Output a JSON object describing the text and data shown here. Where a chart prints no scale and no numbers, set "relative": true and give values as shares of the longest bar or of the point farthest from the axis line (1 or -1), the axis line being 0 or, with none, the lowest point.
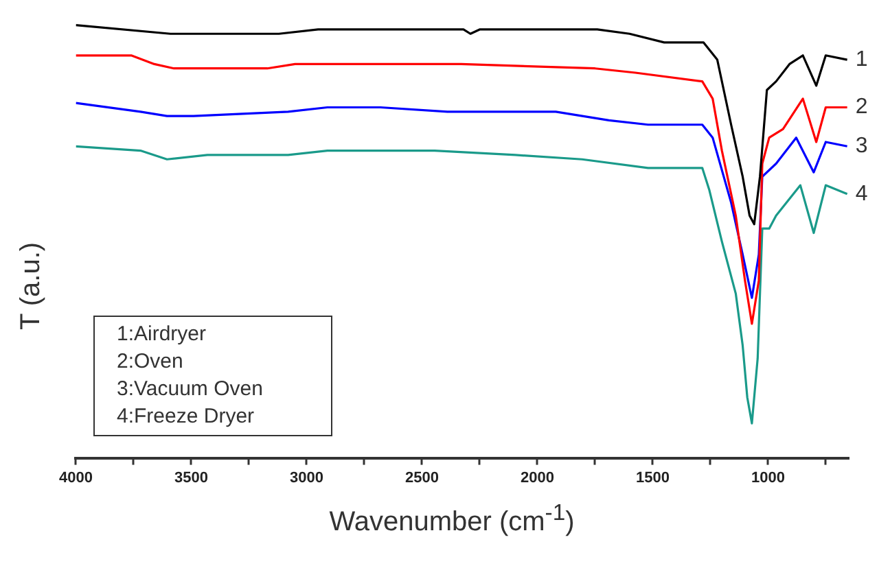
{
  "chart_data": {
    "type": "line",
    "relative": true,
    "xlabel": "Wavenumber (cm$^{-1}$)",
    "ylabel": "T (a.u.)",
    "xlim": [
      4000,
      650
    ],
    "xticks": [
      4000,
      {
        "value": 3750,
        "label": null
      },
      3500,
      {
        "value": 3250,
        "label": null
      },
      3000,
      {
        "value": 2750,
        "label": null
      },
      2500,
      {
        "value": 2250,
        "label": null
      },
      2000,
      {
        "value": 1750,
        "label": null
      },
      1500,
      {
        "value": 1250,
        "label": null
      },
      1000,
      {
        "value": 750,
        "label": null
      }
    ],
    "legend": false,
    "grid": false,
    "marker": "none",
    "line_style": "solid",
    "annotations": [
      "1:Airdryer",
      "2:Oven",
      "3:Vacuum Oven",
      "4:Freeze Dryer"
    ],
    "series": [
      {
        "name": "1",
        "color": "#000000",
        "x": [
          4000,
          3590,
          3120,
          2950,
          2320,
          2290,
          2250,
          1740,
          1600,
          1450,
          1280,
          1220,
          1160,
          1110,
          1080,
          1060,
          1035,
          1005,
          965,
          907,
          849,
          791,
          750,
          657
        ],
        "values": [
          1,
          0.98,
          0.98,
          0.99,
          0.99,
          0.98,
          0.99,
          0.99,
          0.98,
          0.96,
          0.96,
          0.92,
          0.77,
          0.65,
          0.56,
          0.54,
          0.65,
          0.85,
          0.87,
          0.91,
          0.93,
          0.86,
          0.93,
          0.92
        ]
      },
      {
        "name": "2",
        "color": "#ff0000",
        "x": [
          4000,
          3760,
          3660,
          3575,
          3430,
          3170,
          3050,
          2850,
          2330,
          1750,
          1575,
          1285,
          1240,
          1200,
          1140,
          1100,
          1070,
          1040,
          1025,
          995,
          935,
          849,
          791,
          750,
          657
        ],
        "values": [
          0.93,
          0.93,
          0.91,
          0.9,
          0.9,
          0.9,
          0.91,
          0.91,
          0.91,
          0.9,
          0.89,
          0.87,
          0.83,
          0.71,
          0.56,
          0.41,
          0.31,
          0.41,
          0.68,
          0.74,
          0.76,
          0.83,
          0.73,
          0.81,
          0.81
        ]
      },
      {
        "name": "3",
        "color": "#0000ff",
        "x": [
          4000,
          3720,
          3605,
          3490,
          3080,
          2910,
          2680,
          2390,
          2330,
          1920,
          1690,
          1520,
          1285,
          1240,
          1160,
          1110,
          1070,
          1040,
          1025,
          965,
          878,
          802,
          750,
          657
        ],
        "values": [
          0.82,
          0.8,
          0.79,
          0.79,
          0.8,
          0.81,
          0.81,
          0.8,
          0.8,
          0.8,
          0.78,
          0.77,
          0.77,
          0.74,
          0.59,
          0.47,
          0.37,
          0.47,
          0.65,
          0.68,
          0.74,
          0.66,
          0.73,
          0.72
        ]
      },
      {
        "name": "4",
        "color": "#1a9a8a",
        "x": [
          4000,
          3720,
          3605,
          3430,
          3257,
          3080,
          2910,
          2445,
          2095,
          1806,
          1520,
          1285,
          1255,
          1200,
          1140,
          1110,
          1090,
          1070,
          1045,
          1025,
          995,
          965,
          860,
          802,
          750,
          657
        ],
        "values": [
          0.72,
          0.71,
          0.69,
          0.7,
          0.7,
          0.7,
          0.71,
          0.71,
          0.7,
          0.69,
          0.67,
          0.67,
          0.62,
          0.5,
          0.38,
          0.26,
          0.14,
          0.08,
          0.23,
          0.53,
          0.53,
          0.56,
          0.63,
          0.52,
          0.63,
          0.61
        ]
      }
    ]
  }
}
